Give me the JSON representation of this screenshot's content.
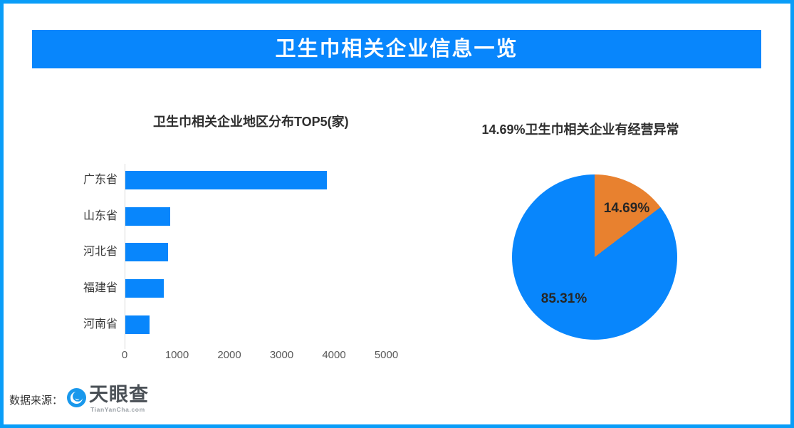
{
  "header": {
    "title": "卫生巾相关企业信息一览",
    "background": "#0886FC",
    "text_color": "#FFFFFF"
  },
  "colors": {
    "frame_border": "#0A9DF8",
    "primary_blue": "#0886FC",
    "accent_orange": "#E8812F"
  },
  "chart_data": [
    {
      "type": "bar",
      "orientation": "horizontal",
      "title": "卫生巾相关企业地区分布TOP5(家)",
      "categories": [
        "广东省",
        "山东省",
        "河北省",
        "福建省",
        "河南省"
      ],
      "values": [
        3850,
        860,
        820,
        740,
        460
      ],
      "xlabel": "",
      "ylabel": "",
      "xlim": [
        0,
        5000
      ],
      "x_ticks": [
        0,
        1000,
        2000,
        3000,
        4000,
        5000
      ],
      "bar_color": "#0886FC",
      "grid": false,
      "legend": false
    },
    {
      "type": "pie",
      "title": "14.69%卫生巾相关企业有经营异常",
      "values": [
        14.69,
        85.31
      ],
      "display_labels": [
        "14.69%",
        "85.31%"
      ],
      "colors": [
        "#E8812F",
        "#0886FC"
      ],
      "start_angle": "top",
      "direction": "clockwise",
      "legend": false
    }
  ],
  "footer": {
    "source_label": "数据来源：",
    "logo_text": "天眼查",
    "logo_subtext": "TianYanCha.com",
    "logo_icon": "tianyancha-eye-icon"
  }
}
